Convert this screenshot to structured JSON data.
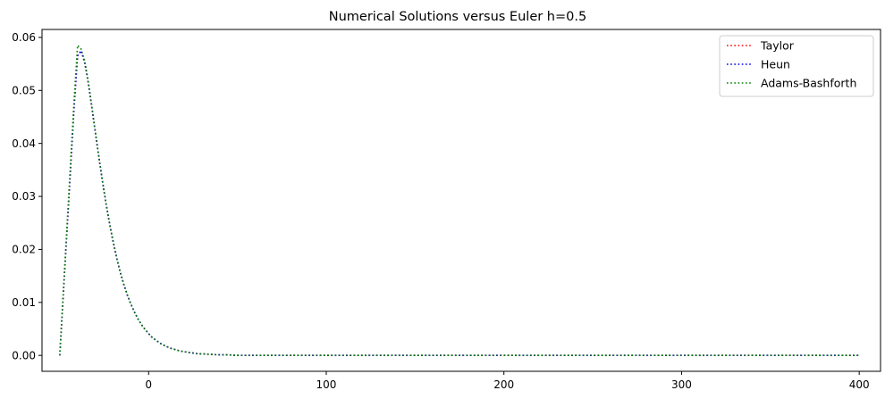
{
  "chart_data": {
    "type": "line",
    "title": "Numerical Solutions versus Euler h=0.5",
    "xlabel": "",
    "ylabel": "",
    "xlim": [
      -60,
      412
    ],
    "ylim": [
      -0.003,
      0.0615
    ],
    "xticks": [
      0,
      100,
      200,
      300,
      400
    ],
    "xtick_labels": [
      "0",
      "100",
      "200",
      "300",
      "400"
    ],
    "yticks": [
      0.0,
      0.01,
      0.02,
      0.03,
      0.04,
      0.05,
      0.06
    ],
    "ytick_labels": [
      "0.00",
      "0.01",
      "0.02",
      "0.03",
      "0.04",
      "0.05",
      "0.06"
    ],
    "grid": false,
    "legend_position": "top-right",
    "line_style": "dotted",
    "series": [
      {
        "name": "Taylor",
        "color": "#ff0000",
        "x": [
          -50,
          -48,
          -46,
          -44,
          -42,
          -40,
          -38,
          -36,
          -34,
          -32,
          -30,
          -28,
          -26,
          -24,
          -22,
          -20,
          -18,
          -16,
          -14,
          -12,
          -10,
          -8,
          -6,
          -4,
          -2,
          0,
          2,
          4,
          6,
          8,
          10,
          12,
          14,
          16,
          18,
          20,
          22,
          24,
          26,
          28,
          30,
          35,
          40,
          45,
          50,
          60,
          80,
          100,
          150,
          200,
          250,
          300,
          350,
          400
        ],
        "y": [
          0.0,
          0.0116,
          0.0232,
          0.0348,
          0.0465,
          0.0565,
          0.0575,
          0.0553,
          0.0515,
          0.0469,
          0.0421,
          0.0374,
          0.0329,
          0.0287,
          0.0249,
          0.0215,
          0.0184,
          0.0157,
          0.0134,
          0.0114,
          0.0097,
          0.0082,
          0.0069,
          0.0058,
          0.0049,
          0.0041,
          0.0034,
          0.0029,
          0.0024,
          0.002,
          0.0017,
          0.0014,
          0.0012,
          0.001,
          0.0008,
          0.0007,
          0.0006,
          0.0005,
          0.0004,
          0.0003,
          0.0003,
          0.0002,
          0.0001,
          0.0001,
          0.0,
          0.0,
          0.0,
          0.0,
          0.0,
          0.0,
          0.0,
          0.0,
          0.0,
          0.0
        ]
      },
      {
        "name": "Heun",
        "color": "#0000ff",
        "x": [
          -50,
          -48,
          -46,
          -44,
          -42,
          -40,
          -38,
          -36,
          -34,
          -32,
          -30,
          -28,
          -26,
          -24,
          -22,
          -20,
          -18,
          -16,
          -14,
          -12,
          -10,
          -8,
          -6,
          -4,
          -2,
          0,
          2,
          4,
          6,
          8,
          10,
          12,
          14,
          16,
          18,
          20,
          22,
          24,
          26,
          28,
          30,
          35,
          40,
          45,
          50,
          60,
          80,
          100,
          150,
          200,
          250,
          300,
          350,
          400
        ],
        "y": [
          0.0,
          0.0116,
          0.0232,
          0.0348,
          0.0465,
          0.0565,
          0.0575,
          0.0553,
          0.0515,
          0.0469,
          0.0421,
          0.0374,
          0.0329,
          0.0287,
          0.0249,
          0.0215,
          0.0184,
          0.0157,
          0.0134,
          0.0114,
          0.0097,
          0.0082,
          0.0069,
          0.0058,
          0.0049,
          0.0041,
          0.0034,
          0.0029,
          0.0024,
          0.002,
          0.0017,
          0.0014,
          0.0012,
          0.001,
          0.0008,
          0.0007,
          0.0006,
          0.0005,
          0.0004,
          0.0003,
          0.0003,
          0.0002,
          0.0001,
          0.0001,
          0.0,
          0.0,
          0.0,
          0.0,
          0.0,
          0.0,
          0.0,
          0.0,
          0.0,
          0.0
        ]
      },
      {
        "name": "Adams-Bashforth",
        "color": "#008000",
        "x": [
          -50,
          -48,
          -46,
          -44,
          -42,
          -40,
          -38,
          -36,
          -34,
          -32,
          -30,
          -28,
          -26,
          -24,
          -22,
          -20,
          -18,
          -16,
          -14,
          -12,
          -10,
          -8,
          -6,
          -4,
          -2,
          0,
          2,
          4,
          6,
          8,
          10,
          12,
          14,
          16,
          18,
          20,
          22,
          24,
          26,
          28,
          30,
          35,
          40,
          45,
          50,
          60,
          80,
          100,
          150,
          200,
          250,
          300,
          350,
          400
        ],
        "y": [
          0.0,
          0.012,
          0.024,
          0.036,
          0.0478,
          0.0585,
          0.0578,
          0.0556,
          0.0518,
          0.0471,
          0.0423,
          0.0375,
          0.033,
          0.0288,
          0.025,
          0.0216,
          0.0185,
          0.0158,
          0.0135,
          0.0115,
          0.0097,
          0.0082,
          0.0069,
          0.0058,
          0.0049,
          0.0041,
          0.0034,
          0.0029,
          0.0024,
          0.002,
          0.0017,
          0.0014,
          0.0012,
          0.001,
          0.0008,
          0.0007,
          0.0006,
          0.0005,
          0.0004,
          0.0003,
          0.0003,
          0.0002,
          0.0001,
          0.0001,
          0.0,
          0.0,
          0.0,
          0.0,
          0.0,
          0.0,
          0.0,
          0.0,
          0.0,
          0.0
        ]
      }
    ]
  }
}
